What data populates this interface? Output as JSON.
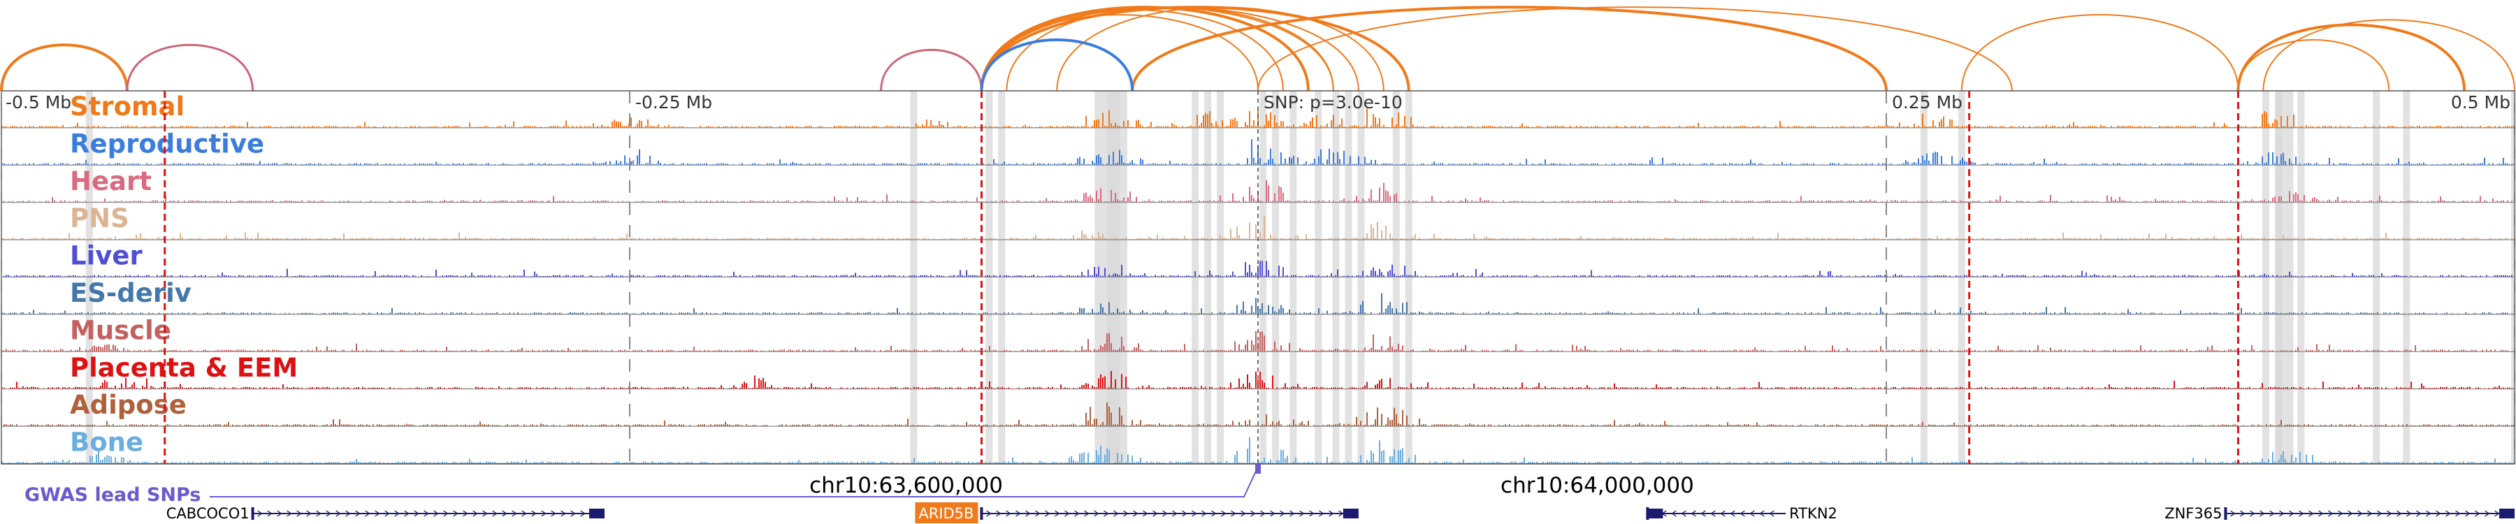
{
  "axis": {
    "ticks": [
      {
        "pos": -0.5,
        "label": "-0.5 Mb"
      },
      {
        "pos": -0.25,
        "label": "-0.25 Mb"
      },
      {
        "pos": 0.25,
        "label": "0.25 Mb"
      },
      {
        "pos": 0.5,
        "label": "0.5 Mb"
      }
    ],
    "snp_label": "SNP: p=3.0e-10",
    "snp_pos": 0.0
  },
  "tracks": [
    {
      "name": "Stromal",
      "color": "#f07a1a"
    },
    {
      "name": "Reproductive",
      "color": "#3b7ddd"
    },
    {
      "name": "Heart",
      "color": "#d86b7f"
    },
    {
      "name": "PNS",
      "color": "#dcb492"
    },
    {
      "name": "Liver",
      "color": "#4f4fd6"
    },
    {
      "name": "ES-deriv",
      "color": "#4477aa"
    },
    {
      "name": "Muscle",
      "color": "#c46060"
    },
    {
      "name": "Placenta & EEM",
      "color": "#dd1111"
    },
    {
      "name": "Adipose",
      "color": "#b0603a"
    },
    {
      "name": "Bone",
      "color": "#6aaee0"
    }
  ],
  "red_lines": [
    -0.435,
    -0.11,
    0.283,
    0.39
  ],
  "gray_bands": [
    -0.465,
    -0.137,
    -0.107,
    -0.102,
    -0.025,
    -0.02,
    -0.015,
    0.002,
    0.007,
    0.014,
    0.024,
    0.031,
    0.036,
    0.041,
    0.055,
    0.06,
    0.265,
    0.28,
    0.401,
    0.406,
    0.415,
    0.445,
    0.457,
    0.5
  ],
  "gray_wide": [
    [
      -0.065,
      -0.055
    ],
    [
      -0.06,
      -0.052
    ],
    [
      0.405,
      0.412
    ]
  ],
  "regions": {
    "Stromal": [
      [
        -0.25,
        0.4
      ],
      [
        -0.13,
        0.3
      ],
      [
        -0.06,
        0.7
      ],
      [
        -0.02,
        0.6
      ],
      [
        0.0,
        0.8
      ],
      [
        0.03,
        0.6
      ],
      [
        0.05,
        0.9
      ],
      [
        0.27,
        0.7
      ],
      [
        0.405,
        0.8
      ]
    ],
    "Reproductive": [
      [
        -0.25,
        0.5
      ],
      [
        -0.06,
        0.7
      ],
      [
        0.0,
        0.9
      ],
      [
        0.03,
        0.7
      ],
      [
        0.27,
        0.5
      ],
      [
        0.405,
        0.5
      ]
    ],
    "Heart": [
      [
        -0.06,
        0.6
      ],
      [
        0.0,
        0.9
      ],
      [
        0.05,
        0.8
      ],
      [
        0.41,
        0.4
      ]
    ],
    "PNS": [
      [
        -0.06,
        0.5
      ],
      [
        0.0,
        0.8
      ],
      [
        0.05,
        0.7
      ]
    ],
    "Liver": [
      [
        -0.06,
        0.6
      ],
      [
        0.0,
        0.7
      ],
      [
        0.05,
        0.7
      ]
    ],
    "ES-deriv": [
      [
        -0.06,
        0.5
      ],
      [
        0.0,
        0.6
      ],
      [
        0.05,
        0.8
      ]
    ],
    "Muscle": [
      [
        -0.46,
        0.4
      ],
      [
        -0.06,
        0.7
      ],
      [
        0.0,
        0.8
      ],
      [
        0.05,
        1.0
      ]
    ],
    "Placenta & EEM": [
      [
        -0.45,
        0.6
      ],
      [
        -0.2,
        0.4
      ],
      [
        -0.06,
        0.7
      ],
      [
        0.0,
        0.7
      ],
      [
        0.05,
        0.8
      ]
    ],
    "Adipose": [
      [
        -0.06,
        1.0
      ],
      [
        0.0,
        0.8
      ],
      [
        0.05,
        0.9
      ]
    ],
    "Bone": [
      [
        -0.46,
        0.4
      ],
      [
        -0.06,
        0.9
      ],
      [
        0.0,
        0.9
      ],
      [
        0.05,
        0.8
      ],
      [
        0.41,
        0.6
      ]
    ]
  },
  "arcs_orange": [
    [
      -0.5,
      -0.45
    ],
    [
      -0.11,
      0.0
    ],
    [
      -0.11,
      0.01
    ],
    [
      -0.11,
      0.02
    ],
    [
      -0.11,
      0.03
    ],
    [
      -0.11,
      0.04
    ],
    [
      -0.11,
      0.06
    ],
    [
      -0.1,
      0.03
    ],
    [
      -0.08,
      0.05
    ],
    [
      -0.05,
      0.25
    ],
    [
      0.28,
      0.39
    ],
    [
      0.39,
      0.45
    ],
    [
      0.39,
      0.48
    ],
    [
      0.4,
      0.5
    ],
    [
      0.0,
      0.3
    ]
  ],
  "arcs_pink": [
    [
      -0.45,
      -0.4
    ],
    [
      -0.15,
      -0.11
    ]
  ],
  "arcs_blue": [
    [
      -0.11,
      -0.05
    ]
  ],
  "coords": [
    {
      "pos": -0.14,
      "label": "chr10:63,600,000"
    },
    {
      "pos": 0.135,
      "label": "chr10:64,000,000"
    }
  ],
  "gwas_label": "GWAS lead SNPs",
  "genes": [
    {
      "name": "CABCOCO1",
      "start": -0.4,
      "end": -0.26,
      "strand": "+",
      "highlight": false
    },
    {
      "name": "ARID5B",
      "start": -0.11,
      "end": 0.04,
      "strand": "+",
      "highlight": true
    },
    {
      "name": "RTKN2",
      "start": 0.155,
      "end": 0.21,
      "strand": "-",
      "highlight": false
    },
    {
      "name": "ZNF365",
      "start": 0.385,
      "end": 0.5,
      "strand": "+",
      "highlight": false
    }
  ],
  "colors": {
    "highlight_gene": "#f07a1a",
    "gene": "#1a1a6e",
    "gwas": "#6a5acd",
    "red_line": "#dd1111",
    "gray": "#d8d8d8"
  }
}
